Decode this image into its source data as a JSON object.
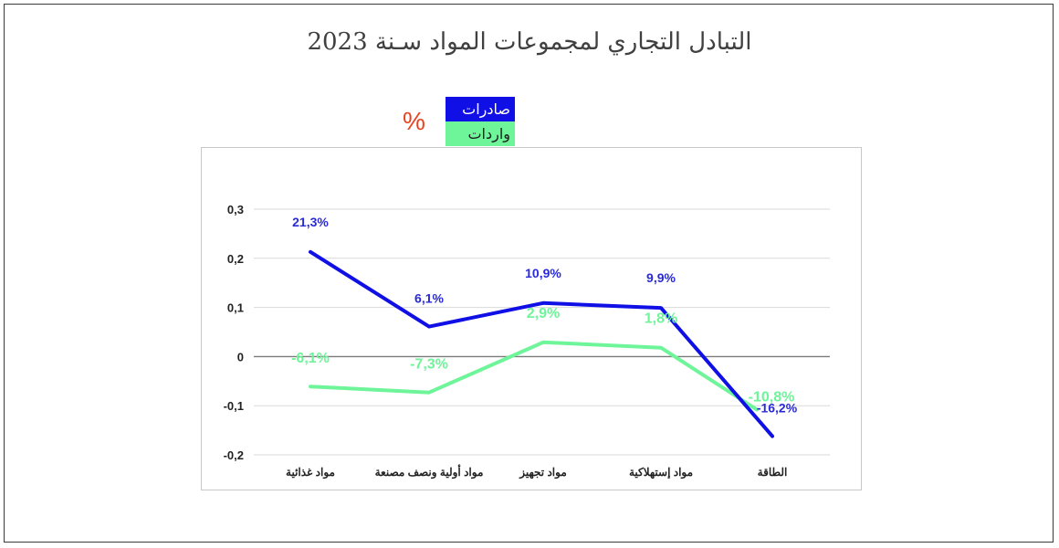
{
  "title": "التبادل التجاري لمجموعات المواد سـنة 2023",
  "unit_symbol": "%",
  "colors": {
    "exports": "#1010e6",
    "imports": "#6ef59a",
    "percent": "#e8431f"
  },
  "chart_data": {
    "type": "line",
    "title": "التبادل التجاري لمجموعات المواد سـنة 2023",
    "categories": [
      "مواد غذائية",
      "مواد أولية ونصف مصنعة",
      "مواد تجهيز",
      "مواد إستهلاكية",
      "الطاقة"
    ],
    "series": [
      {
        "name": "صادرات",
        "values": [
          0.213,
          0.061,
          0.109,
          0.099,
          -0.162
        ],
        "labels": [
          "21,3%",
          "6,1%",
          "10,9%",
          "9,9%",
          "-16,2%"
        ]
      },
      {
        "name": "واردات",
        "values": [
          -0.061,
          -0.073,
          0.029,
          0.018,
          -0.108
        ],
        "labels": [
          "-6,1%",
          "-7,3%",
          "2,9%",
          "1,8%",
          "-10,8%"
        ]
      }
    ],
    "yticks": [
      "0,3",
      "0,2",
      "0,1",
      "0",
      "-0,1",
      "-0,2"
    ],
    "ylim": [
      -0.2,
      0.3
    ],
    "grid": true,
    "legend_position": "top"
  }
}
